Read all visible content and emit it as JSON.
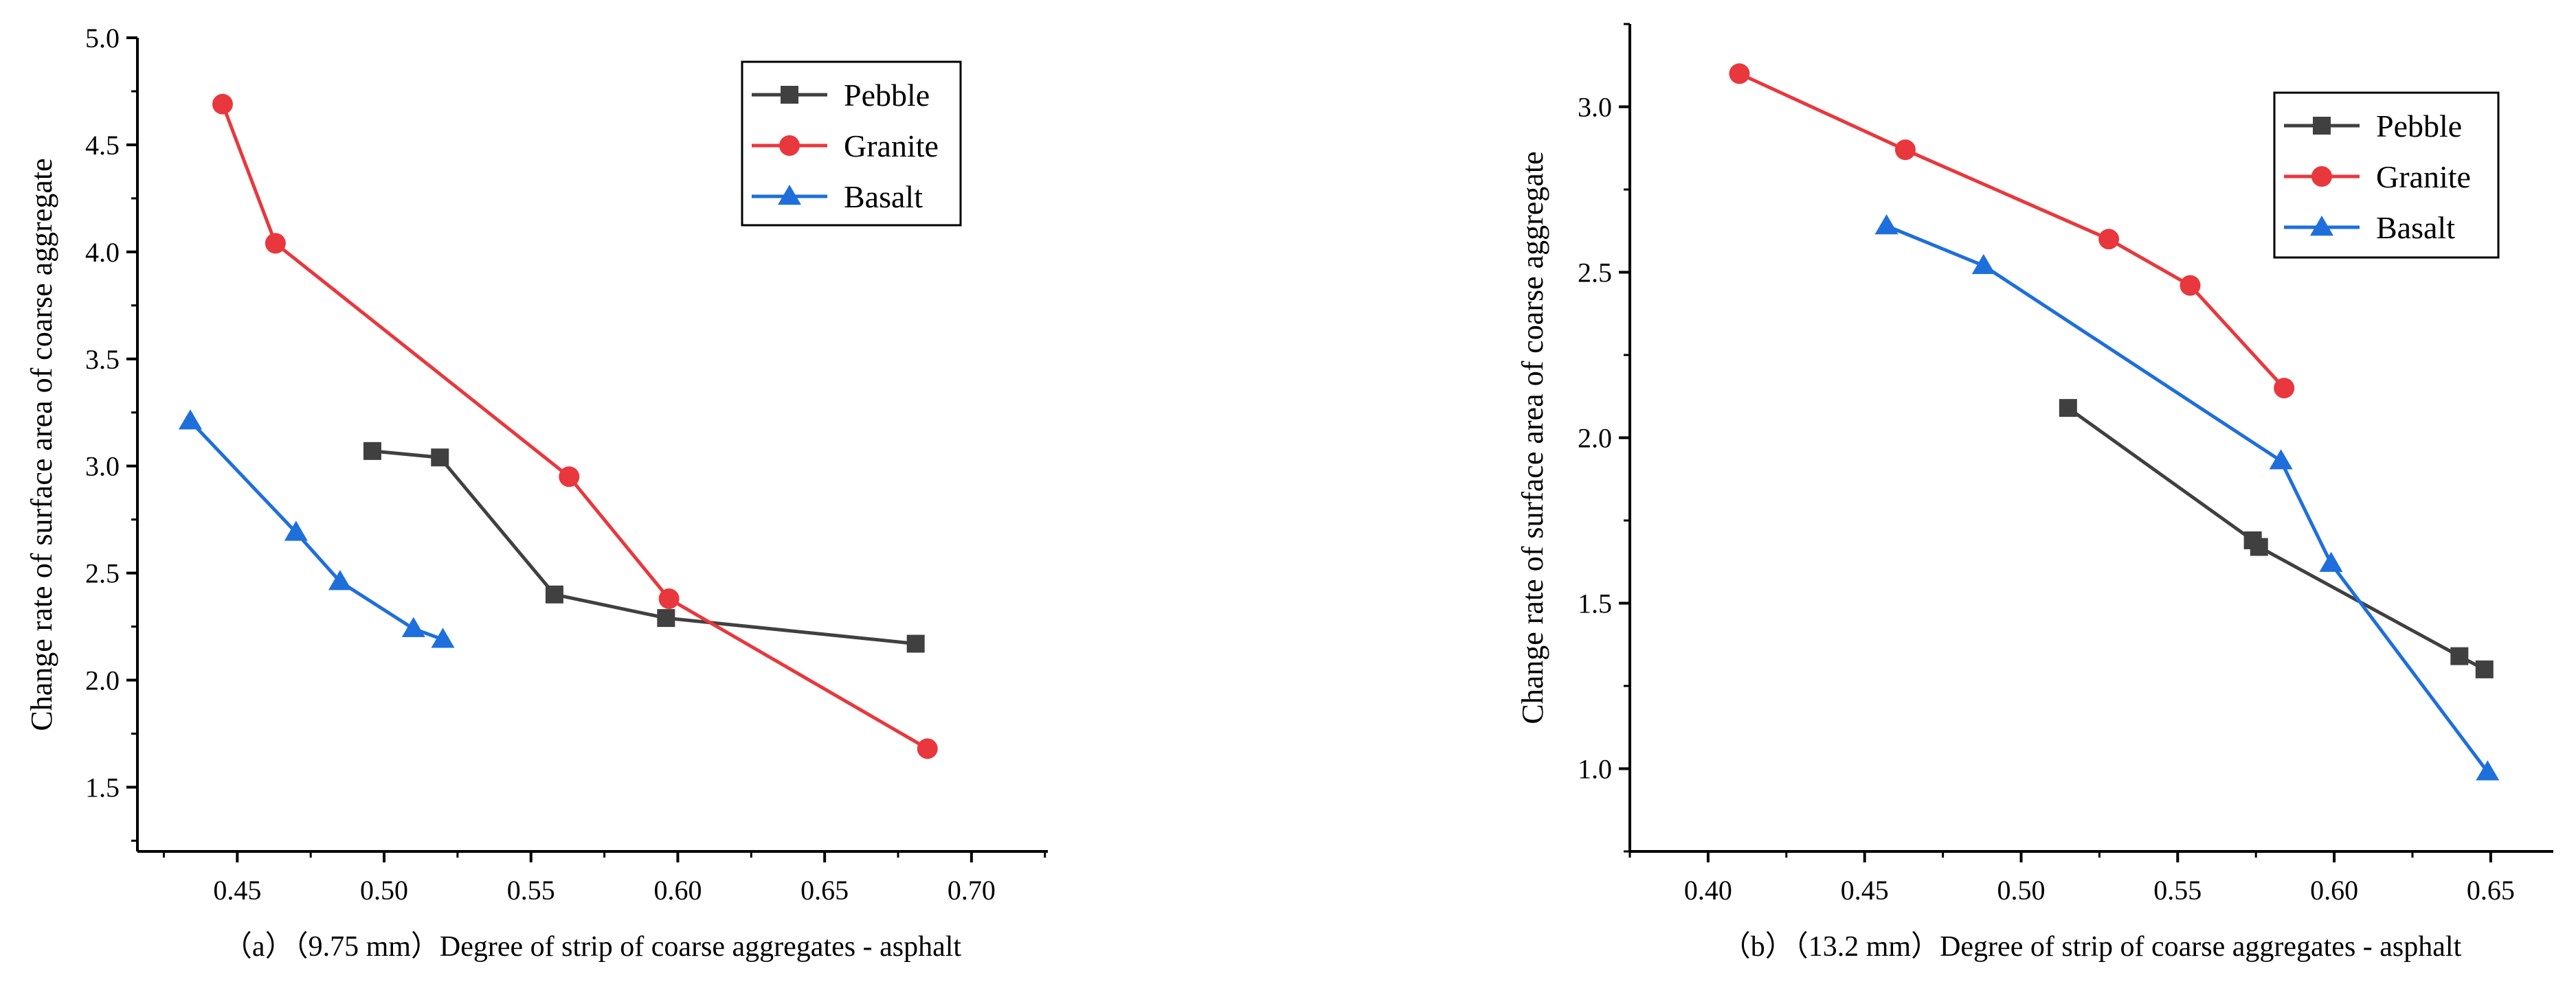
{
  "colors": {
    "pebble": "#404040",
    "granite": "#e8383d",
    "basalt": "#1e6fdb",
    "axis": "#000000"
  },
  "chart_data": [
    {
      "type": "line",
      "id": "a",
      "caption": "（a）（9.75 mm）Degree of strip of coarse aggregates - asphalt",
      "ylabel": "Change rate of surface area of coarse aggregate",
      "xlim": [
        0.416,
        0.726
      ],
      "ylim": [
        1.2,
        5.0
      ],
      "xticks": [
        0.45,
        0.5,
        0.55,
        0.6,
        0.65,
        0.7
      ],
      "xtick_labels": [
        "0.45",
        "0.50",
        "0.55",
        "0.60",
        "0.65",
        "0.70"
      ],
      "yticks": [
        1.5,
        2.0,
        2.5,
        3.0,
        3.5,
        4.0,
        4.5,
        5.0
      ],
      "ytick_labels": [
        "1.5",
        "2.0",
        "2.5",
        "3.0",
        "3.5",
        "4.0",
        "4.5",
        "5.0"
      ],
      "legend_position": "top-right",
      "series": [
        {
          "name": "Pebble",
          "marker": "square",
          "color": "#404040",
          "points": [
            [
              0.496,
              3.07
            ],
            [
              0.519,
              3.04
            ],
            [
              0.558,
              2.4
            ],
            [
              0.596,
              2.29
            ],
            [
              0.681,
              2.17
            ]
          ]
        },
        {
          "name": "Granite",
          "marker": "circle",
          "color": "#e8383d",
          "points": [
            [
              0.445,
              4.69
            ],
            [
              0.463,
              4.04
            ],
            [
              0.563,
              2.95
            ],
            [
              0.597,
              2.38
            ],
            [
              0.685,
              1.68
            ]
          ]
        },
        {
          "name": "Basalt",
          "marker": "triangle",
          "color": "#1e6fdb",
          "points": [
            [
              0.434,
              3.21
            ],
            [
              0.47,
              2.69
            ],
            [
              0.485,
              2.46
            ],
            [
              0.51,
              2.24
            ],
            [
              0.52,
              2.19
            ]
          ]
        }
      ]
    },
    {
      "type": "line",
      "id": "b",
      "caption": "（b）（13.2 mm）Degree of strip of coarse aggregates - asphalt",
      "ylabel": "Change rate of surface area of coarse aggregate",
      "xlim": [
        0.375,
        0.67
      ],
      "ylim": [
        0.75,
        3.25
      ],
      "xticks": [
        0.4,
        0.45,
        0.5,
        0.55,
        0.6,
        0.65
      ],
      "xtick_labels": [
        "0.40",
        "0.45",
        "0.50",
        "0.55",
        "0.60",
        "0.65"
      ],
      "yticks": [
        1.0,
        1.5,
        2.0,
        2.5,
        3.0
      ],
      "ytick_labels": [
        "1.0",
        "1.5",
        "2.0",
        "2.5",
        "3.0"
      ],
      "legend_position": "top-right",
      "series": [
        {
          "name": "Pebble",
          "marker": "square",
          "color": "#404040",
          "points": [
            [
              0.515,
              2.09
            ],
            [
              0.574,
              1.69
            ],
            [
              0.576,
              1.67
            ],
            [
              0.64,
              1.34
            ],
            [
              0.648,
              1.3
            ]
          ]
        },
        {
          "name": "Granite",
          "marker": "circle",
          "color": "#e8383d",
          "points": [
            [
              0.41,
              3.1
            ],
            [
              0.463,
              2.87
            ],
            [
              0.528,
              2.6
            ],
            [
              0.554,
              2.46
            ],
            [
              0.584,
              2.15
            ]
          ]
        },
        {
          "name": "Basalt",
          "marker": "triangle",
          "color": "#1e6fdb",
          "points": [
            [
              0.457,
              2.64
            ],
            [
              0.488,
              2.52
            ],
            [
              0.583,
              1.93
            ],
            [
              0.599,
              1.62
            ],
            [
              0.649,
              0.99
            ]
          ]
        }
      ]
    }
  ]
}
